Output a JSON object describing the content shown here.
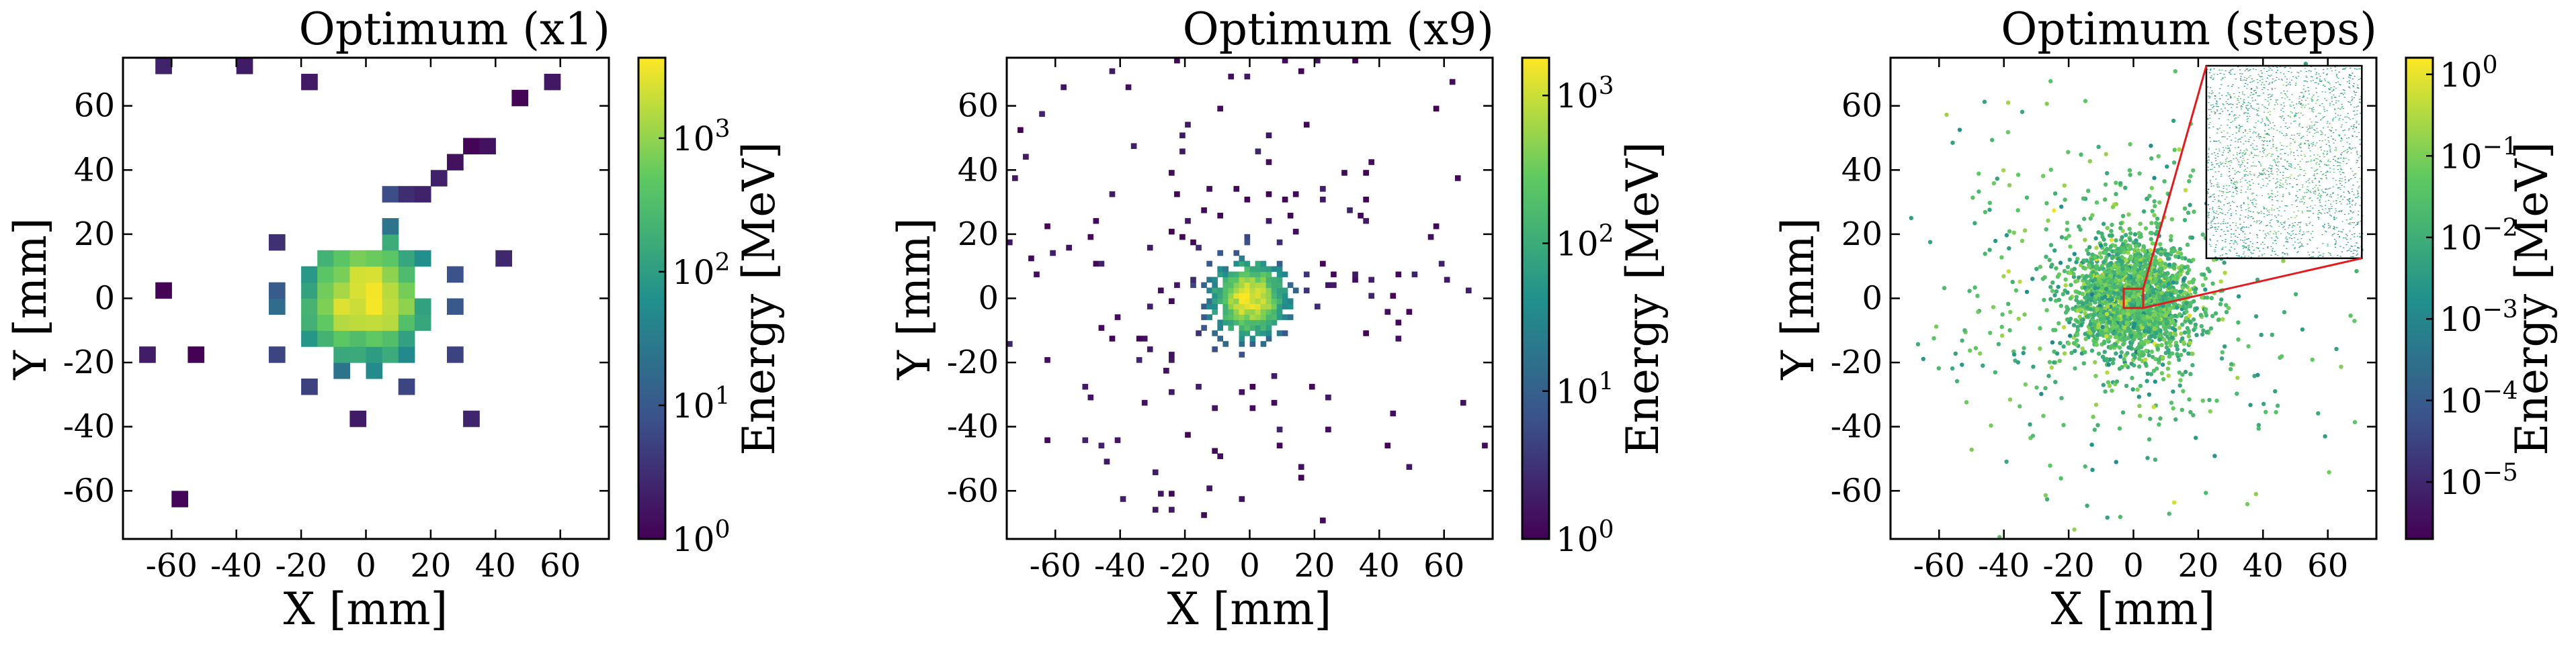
{
  "figure": {
    "colormap": [
      "#440154",
      "#3b528b",
      "#21918c",
      "#5ec962",
      "#fde725"
    ],
    "frame_color": "#000000",
    "inset_box_color": "#e41a1c"
  },
  "chart_data": [
    {
      "type": "heatmap",
      "title": "Optimum (x1)",
      "xlabel": "X [mm]",
      "ylabel": "Y [mm]",
      "xlim": [
        -75,
        75
      ],
      "ylim": [
        -75,
        75
      ],
      "xticks": [
        -60,
        -40,
        -20,
        0,
        20,
        40,
        60
      ],
      "xtick_labels": [
        "-60",
        "-40",
        "-20",
        "0",
        "20",
        "40",
        "60"
      ],
      "yticks": [
        60,
        40,
        20,
        0,
        -20,
        -40,
        -60
      ],
      "ytick_labels": [
        "60",
        "40",
        "20",
        "0",
        "-20",
        "-40",
        "-60"
      ],
      "bin_size_mm": 5,
      "peak_energy_MeV": 3000,
      "spread_mm": 11,
      "sparse_fraction": 0.55,
      "seed": 7,
      "colorbar": {
        "label": "Energy [MeV]",
        "scale": "log",
        "range": [
          1,
          4000
        ],
        "tick_values": [
          1,
          10,
          100,
          1000
        ],
        "tick_bases": [
          "10",
          "10",
          "10",
          "10"
        ],
        "tick_exponents": [
          "0",
          "1",
          "2",
          "3"
        ]
      }
    },
    {
      "type": "heatmap",
      "title": "Optimum (x9)",
      "xlabel": "X [mm]",
      "ylabel": "Y [mm]",
      "xlim": [
        -75,
        75
      ],
      "ylim": [
        -75,
        75
      ],
      "xticks": [
        -60,
        -40,
        -20,
        0,
        20,
        40,
        60
      ],
      "xtick_labels": [
        "-60",
        "-40",
        "-20",
        "0",
        "20",
        "40",
        "60"
      ],
      "yticks": [
        60,
        40,
        20,
        0,
        -20,
        -40,
        -60
      ],
      "ytick_labels": [
        "60",
        "40",
        "20",
        "0",
        "-20",
        "-40",
        "-60"
      ],
      "bin_size_mm": 1.667,
      "peak_energy_MeV": 1500,
      "spread_mm": 6,
      "sparse_fraction": 0.35,
      "seed": 19,
      "colorbar": {
        "label": "Energy [MeV]",
        "scale": "log",
        "range": [
          1,
          1800
        ],
        "tick_values": [
          1,
          10,
          100,
          1000
        ],
        "tick_bases": [
          "10",
          "10",
          "10",
          "10"
        ],
        "tick_exponents": [
          "0",
          "1",
          "2",
          "3"
        ]
      }
    },
    {
      "type": "scatter",
      "title": "Optimum (steps)",
      "xlabel": "X [mm]",
      "ylabel": "Y [mm]",
      "xlim": [
        -75,
        75
      ],
      "ylim": [
        -75,
        75
      ],
      "xticks": [
        -60,
        -40,
        -20,
        0,
        20,
        40,
        60
      ],
      "xtick_labels": [
        "-60",
        "-40",
        "-20",
        "0",
        "20",
        "40",
        "60"
      ],
      "yticks": [
        60,
        40,
        20,
        0,
        -20,
        -40,
        -60
      ],
      "ytick_labels": [
        "60",
        "40",
        "20",
        "0",
        "-20",
        "-40",
        "-60"
      ],
      "n_points": 2600,
      "spread_mm": 9,
      "seed": 31,
      "inset": {
        "zoom_region_x": [
          -3,
          3
        ],
        "zoom_region_y": [
          -3,
          3
        ],
        "n_points": 2200
      },
      "colorbar": {
        "label": "Energy [MeV]",
        "scale": "log",
        "range": [
          2e-06,
          1.6
        ],
        "tick_values": [
          1e-05,
          0.0001,
          0.001,
          0.01,
          0.1,
          1
        ],
        "tick_bases": [
          "10",
          "10",
          "10",
          "10",
          "10",
          "10"
        ],
        "tick_exponents": [
          "−5",
          "−4",
          "−3",
          "−2",
          "−1",
          "0"
        ]
      }
    }
  ]
}
